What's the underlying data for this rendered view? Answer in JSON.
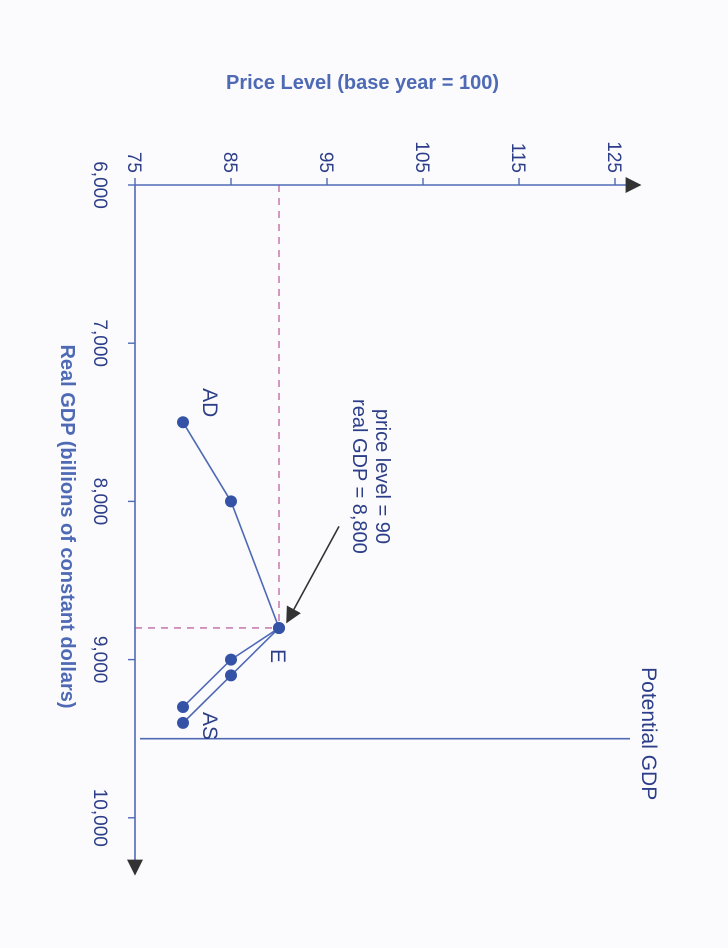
{
  "chart_data": {
    "type": "line",
    "orientation": "rotated-90-clockwise",
    "xlabel": "Real GDP (billions of constant dollars)",
    "ylabel": "Price Level (base year = 100)",
    "xlim": [
      6000,
      10200
    ],
    "ylim": [
      75,
      129
    ],
    "x_ticks": [
      {
        "value": 6000,
        "label": "6,000"
      },
      {
        "value": 7000,
        "label": "7,000"
      },
      {
        "value": 8000,
        "label": "8,000"
      },
      {
        "value": 9000,
        "label": "9,000"
      },
      {
        "value": 10000,
        "label": "10,000"
      }
    ],
    "y_ticks": [
      {
        "value": 75,
        "label": "75"
      },
      {
        "value": 85,
        "label": "85"
      },
      {
        "value": 95,
        "label": "95"
      },
      {
        "value": 105,
        "label": "105"
      },
      {
        "value": 115,
        "label": "115"
      },
      {
        "value": 125,
        "label": "125"
      }
    ],
    "series": [
      {
        "name": "AD",
        "points": [
          {
            "x": 7500,
            "y": 80
          },
          {
            "x": 8000,
            "y": 85
          },
          {
            "x": 8800,
            "y": 90
          },
          {
            "x": 9100,
            "y": 85
          },
          {
            "x": 9400,
            "y": 80
          }
        ]
      },
      {
        "name": "AS",
        "points": [
          {
            "x": 8800,
            "y": 90
          },
          {
            "x": 9000,
            "y": 85
          },
          {
            "x": 9300,
            "y": 80
          }
        ]
      }
    ],
    "potential_gdp": {
      "x": 9500,
      "label": "Potential GDP"
    },
    "equilibrium": {
      "x": 8800,
      "y": 90,
      "label": "E",
      "annotation": [
        "price level = 90",
        "real GDP = 8,800"
      ]
    },
    "colors": {
      "line": "#4f6ab5",
      "marker": "#3553a6",
      "guide": "#c77fb3",
      "text": "#2c3e88",
      "title": "#4f6ab5"
    }
  }
}
